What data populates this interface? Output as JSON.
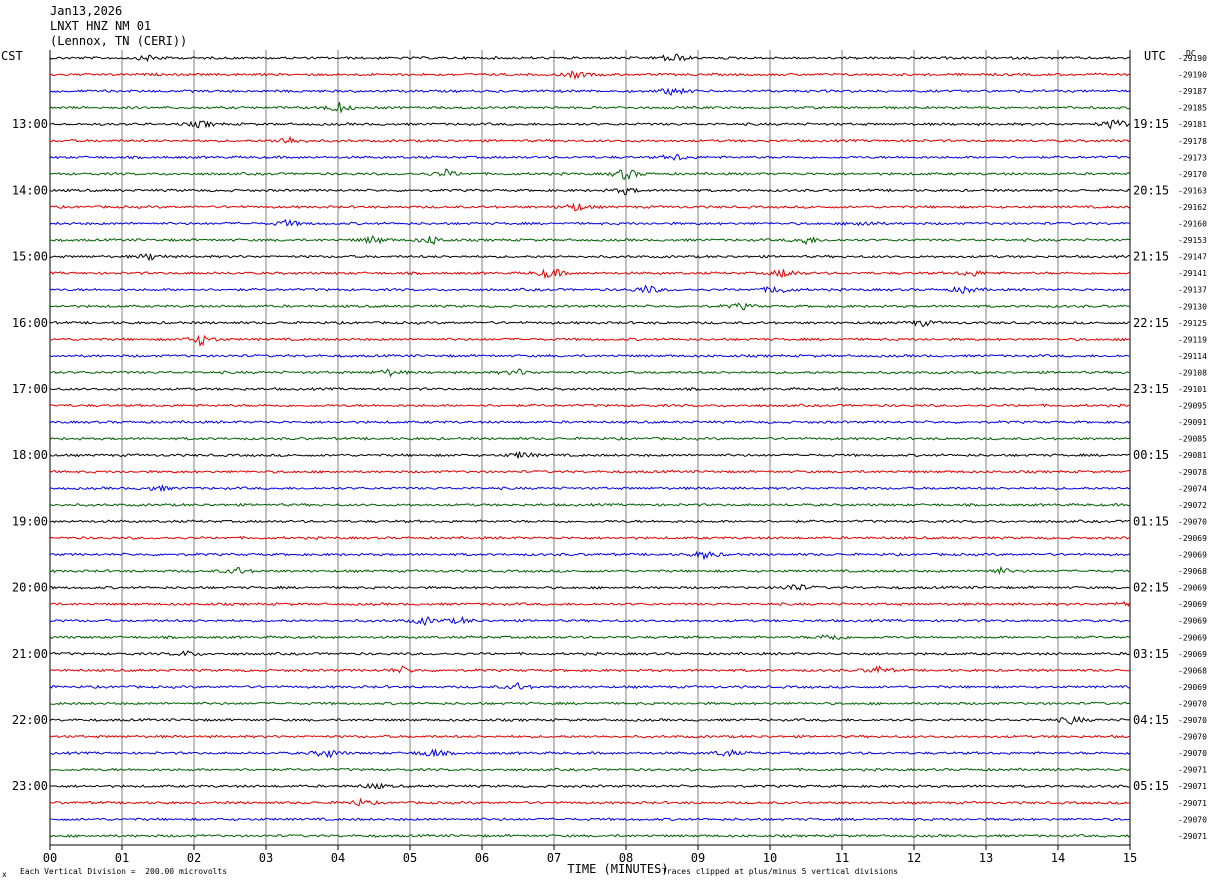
{
  "header": {
    "date": "Jan13,2026",
    "station": "LNXT HNZ NM 01",
    "location": "(Lennox, TN (CERI))"
  },
  "left_zone": "CST",
  "right_zone": "UTC",
  "dc_label": "DC",
  "footer": {
    "marker": "x",
    "scale_note": "Each Vertical Division =  200.00 microvolts",
    "clip_note": "Traces clipped at plus/minus 5 vertical divisions"
  },
  "colors": {
    "trace_cycle": [
      "#000000",
      "#e00000",
      "#0000e0",
      "#006000"
    ],
    "grid": "#808080"
  },
  "chart_data": {
    "type": "line",
    "title": "",
    "xlabel": "TIME (MINUTES)",
    "x_ticks": [
      "00",
      "01",
      "02",
      "03",
      "04",
      "05",
      "06",
      "07",
      "08",
      "09",
      "10",
      "11",
      "12",
      "13",
      "14",
      "15"
    ],
    "xlim": [
      0,
      15
    ],
    "left_hour_labels": [
      "13:00",
      "14:00",
      "15:00",
      "16:00",
      "17:00",
      "18:00",
      "19:00",
      "20:00",
      "21:00",
      "22:00",
      "23:00"
    ],
    "right_hour_labels": [
      "19:15",
      "20:15",
      "21:15",
      "22:15",
      "23:15",
      "00:15",
      "01:15",
      "02:15",
      "03:15",
      "04:15",
      "05:15"
    ],
    "trace_count": 48,
    "dc_offsets": [
      "-29190",
      "-29190",
      "-29187",
      "-29185",
      "-29181",
      "-29178",
      "-29173",
      "-29170",
      "-29163",
      "-29162",
      "-29160",
      "-29153",
      "-29147",
      "-29141",
      "-29137",
      "-29130",
      "-29125",
      "-29119",
      "-29114",
      "-29108",
      "-29101",
      "-29095",
      "-29091",
      "-29085",
      "-29081",
      "-29078",
      "-29074",
      "-29072",
      "-29070",
      "-29069",
      "-29069",
      "-29068",
      "-29069",
      "-29069",
      "-29069",
      "-29069",
      "-29069",
      "-29068",
      "-29069",
      "-29070",
      "-29070",
      "-29070",
      "-29070",
      "-29071",
      "-29071",
      "-29071",
      "-29070",
      "-29071"
    ],
    "events": [
      {
        "trace": 0,
        "minute": 8.65,
        "amp": 1.6
      },
      {
        "trace": 0,
        "minute": 1.4,
        "amp": 0.9
      },
      {
        "trace": 1,
        "minute": 7.3,
        "amp": 1.0
      },
      {
        "trace": 2,
        "minute": 8.65,
        "amp": 1.2
      },
      {
        "trace": 3,
        "minute": 4.0,
        "amp": 1.6
      },
      {
        "trace": 4,
        "minute": 14.8,
        "amp": 1.8
      },
      {
        "trace": 4,
        "minute": 2.1,
        "amp": 1.0
      },
      {
        "trace": 5,
        "minute": 3.3,
        "amp": 1.3
      },
      {
        "trace": 6,
        "minute": 8.7,
        "amp": 0.9
      },
      {
        "trace": 7,
        "minute": 5.5,
        "amp": 1.1
      },
      {
        "trace": 7,
        "minute": 8.0,
        "amp": 1.8
      },
      {
        "trace": 8,
        "minute": 8.0,
        "amp": 1.0
      },
      {
        "trace": 9,
        "minute": 7.3,
        "amp": 1.3
      },
      {
        "trace": 10,
        "minute": 3.3,
        "amp": 1.0
      },
      {
        "trace": 10,
        "minute": 11.3,
        "amp": 0.9
      },
      {
        "trace": 11,
        "minute": 4.5,
        "amp": 1.2
      },
      {
        "trace": 11,
        "minute": 5.3,
        "amp": 1.3
      },
      {
        "trace": 11,
        "minute": 10.5,
        "amp": 1.2
      },
      {
        "trace": 12,
        "minute": 1.4,
        "amp": 1.0
      },
      {
        "trace": 13,
        "minute": 6.95,
        "amp": 1.8
      },
      {
        "trace": 13,
        "minute": 10.2,
        "amp": 1.4
      },
      {
        "trace": 13,
        "minute": 12.8,
        "amp": 1.0
      },
      {
        "trace": 14,
        "minute": 8.3,
        "amp": 1.3
      },
      {
        "trace": 14,
        "minute": 10.1,
        "amp": 1.4
      },
      {
        "trace": 14,
        "minute": 12.7,
        "amp": 1.1
      },
      {
        "trace": 15,
        "minute": 9.6,
        "amp": 0.9
      },
      {
        "trace": 17,
        "minute": 2.1,
        "amp": 1.7
      },
      {
        "trace": 16,
        "minute": 12.1,
        "amp": 1.0
      },
      {
        "trace": 19,
        "minute": 4.7,
        "amp": 1.0
      },
      {
        "trace": 19,
        "minute": 6.5,
        "amp": 0.9
      },
      {
        "trace": 24,
        "minute": 6.55,
        "amp": 1.1
      },
      {
        "trace": 26,
        "minute": 1.5,
        "amp": 0.8
      },
      {
        "trace": 30,
        "minute": 9.1,
        "amp": 1.2
      },
      {
        "trace": 31,
        "minute": 2.6,
        "amp": 1.0
      },
      {
        "trace": 31,
        "minute": 13.2,
        "amp": 0.9
      },
      {
        "trace": 32,
        "minute": 10.35,
        "amp": 1.2
      },
      {
        "trace": 33,
        "minute": 14.95,
        "amp": 1.0
      },
      {
        "trace": 34,
        "minute": 5.2,
        "amp": 1.2
      },
      {
        "trace": 34,
        "minute": 5.7,
        "amp": 0.9
      },
      {
        "trace": 35,
        "minute": 10.85,
        "amp": 1.2
      },
      {
        "trace": 36,
        "minute": 1.9,
        "amp": 0.8
      },
      {
        "trace": 37,
        "minute": 4.9,
        "amp": 0.9
      },
      {
        "trace": 37,
        "minute": 11.5,
        "amp": 1.1
      },
      {
        "trace": 38,
        "minute": 6.5,
        "amp": 1.0
      },
      {
        "trace": 40,
        "minute": 14.2,
        "amp": 1.2
      },
      {
        "trace": 42,
        "minute": 3.85,
        "amp": 1.4
      },
      {
        "trace": 42,
        "minute": 5.3,
        "amp": 1.3
      },
      {
        "trace": 42,
        "minute": 9.4,
        "amp": 1.1
      },
      {
        "trace": 44,
        "minute": 4.5,
        "amp": 0.8
      },
      {
        "trace": 45,
        "minute": 4.3,
        "amp": 0.9
      }
    ]
  }
}
